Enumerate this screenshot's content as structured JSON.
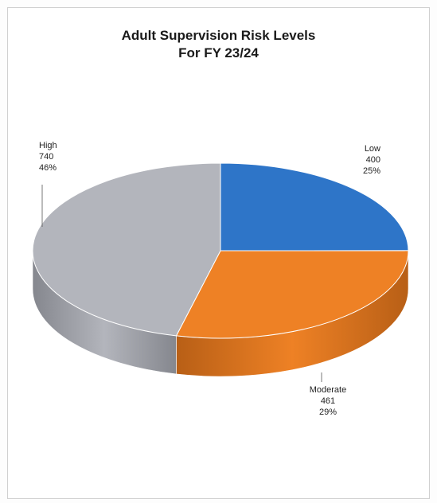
{
  "chart_data": {
    "type": "pie",
    "title": [
      "Adult Supervision Risk Levels",
      "For FY 23/24"
    ],
    "three_d": true,
    "slices": [
      {
        "label": "Low",
        "value": 400,
        "percent": "25%",
        "color": "#2e75c8",
        "side_color": "#1f5a9e"
      },
      {
        "label": "Moderate",
        "value": 461,
        "percent": "29%",
        "color": "#ee8125",
        "side_color": "#b85f16"
      },
      {
        "label": "High",
        "value": 740,
        "percent": "46%",
        "color": "#b3b5bc",
        "side_color": "#85878e"
      }
    ]
  }
}
